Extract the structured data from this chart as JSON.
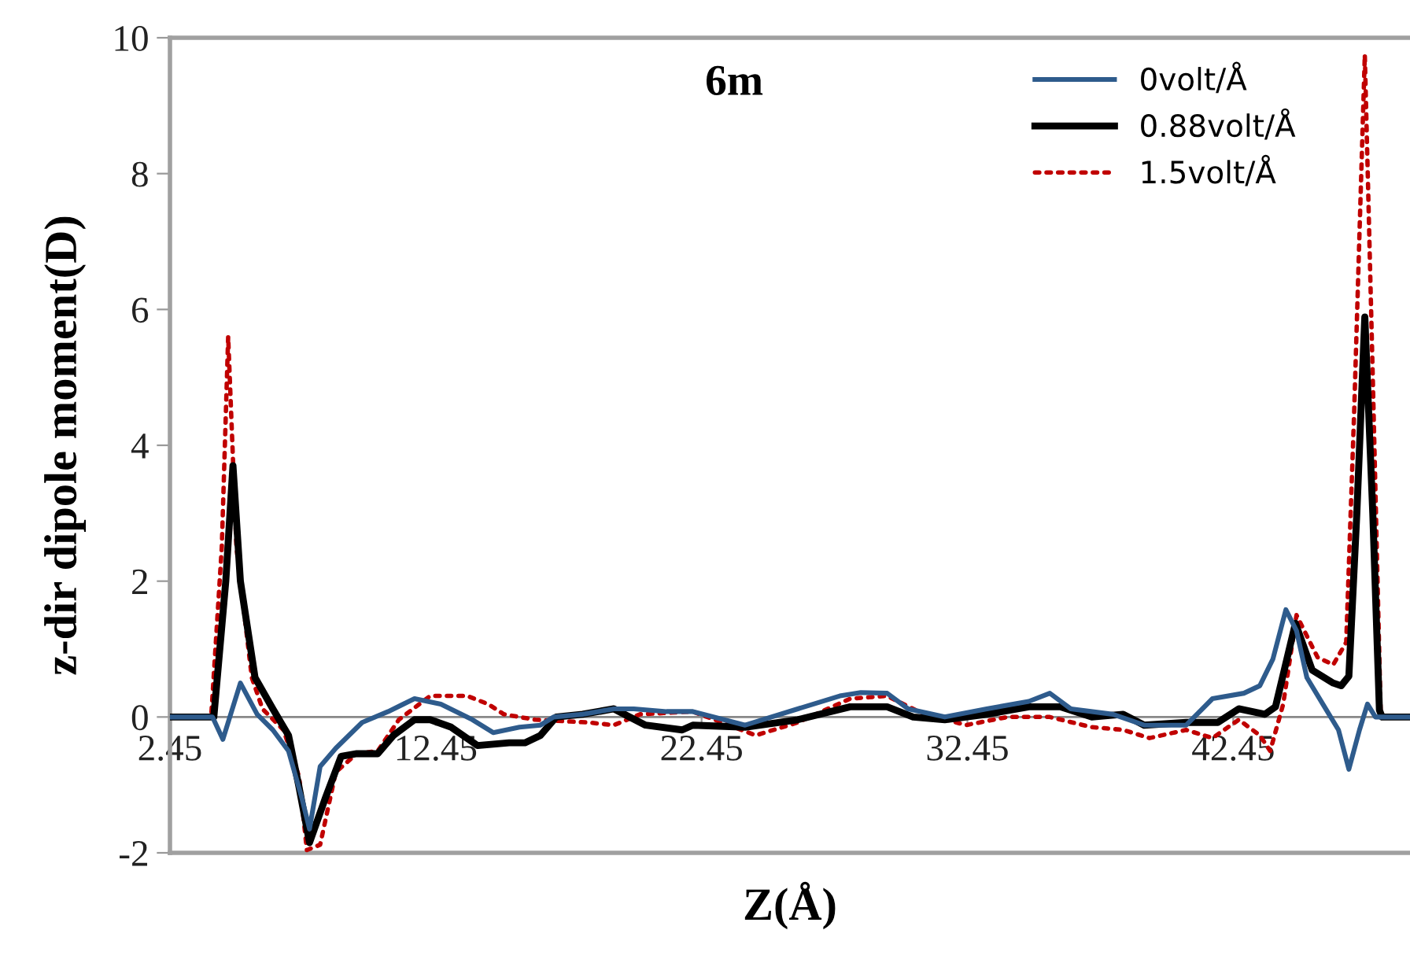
{
  "chart_data": {
    "type": "line",
    "title": "6m",
    "xlabel": "Z(Å)",
    "ylabel": "z-dir dipole moment(D)",
    "xlim": [
      2.45,
      49.1
    ],
    "xticks": [
      2.45,
      12.45,
      22.45,
      32.45,
      42.45
    ],
    "ylim": [
      -2,
      10
    ],
    "yticks": [
      -2,
      0,
      2,
      4,
      6,
      8,
      10
    ],
    "grid": false,
    "legend": "top right",
    "series": [
      {
        "name": "0volt/Å",
        "color": "#2e5b8c",
        "line_style": "solid",
        "x": [
          2.45,
          4.05,
          4.44,
          5.1,
          5.73,
          6.32,
          6.91,
          7.41,
          7.7,
          8.1,
          8.69,
          9.68,
          10.66,
          11.65,
          12.64,
          13.83,
          14.61,
          15.6,
          16.39,
          16.88,
          17.97,
          19.15,
          19.9,
          21.13,
          22.12,
          24.09,
          26.07,
          27.65,
          28.44,
          29.43,
          30.22,
          31.6,
          33.18,
          34.76,
          35.55,
          36.34,
          37.92,
          39.1,
          40.68,
          41.67,
          42.85,
          43.45,
          43.94,
          44.43,
          44.83,
          45.22,
          45.82,
          46.41,
          46.8,
          47.2,
          47.5,
          47.8,
          49.1
        ],
        "values": [
          0,
          0,
          -0.33,
          0.5,
          0.04,
          -0.19,
          -0.5,
          -1.19,
          -1.65,
          -0.73,
          -0.46,
          -0.08,
          0.08,
          0.27,
          0.19,
          -0.04,
          -0.23,
          -0.15,
          -0.12,
          0,
          0.04,
          0.12,
          0.12,
          0.08,
          0.08,
          -0.12,
          0.12,
          0.31,
          0.36,
          0.35,
          0.12,
          0,
          0.12,
          0.23,
          0.35,
          0.12,
          0.04,
          -0.12,
          -0.12,
          0.27,
          0.35,
          0.46,
          0.85,
          1.58,
          1.27,
          0.58,
          0.19,
          -0.19,
          -0.77,
          -0.19,
          0.19,
          0,
          0
        ]
      },
      {
        "name": "0.88volt/Å",
        "color": "#000000",
        "line_style": "solid",
        "x": [
          2.45,
          4.1,
          4.55,
          4.82,
          5.1,
          5.65,
          6.32,
          6.91,
          7.31,
          7.7,
          8.3,
          8.89,
          9.48,
          10.27,
          10.86,
          11.65,
          12.24,
          13.03,
          14.02,
          15.21,
          15.8,
          16.39,
          16.98,
          17.97,
          19.15,
          20.34,
          21.72,
          22.12,
          24.09,
          26.07,
          28.04,
          29.43,
          30.41,
          31.6,
          33.18,
          34.76,
          35.94,
          37.13,
          38.31,
          39.1,
          40.68,
          41.87,
          42.66,
          43.64,
          44.04,
          44.79,
          45.42,
          46.21,
          46.51,
          46.8,
          47.1,
          47.4,
          47.7,
          47.95,
          48.05,
          49.1
        ],
        "values": [
          0,
          0,
          2.0,
          3.7,
          2.0,
          0.58,
          0.12,
          -0.27,
          -1.04,
          -1.85,
          -1.19,
          -0.58,
          -0.54,
          -0.54,
          -0.27,
          -0.04,
          -0.04,
          -0.15,
          -0.42,
          -0.38,
          -0.38,
          -0.27,
          0,
          0.04,
          0.12,
          -0.12,
          -0.19,
          -0.12,
          -0.15,
          -0.04,
          0.15,
          0.15,
          0,
          -0.04,
          0.04,
          0.15,
          0.15,
          0,
          0.04,
          -0.12,
          -0.08,
          -0.08,
          0.12,
          0.04,
          0.15,
          1.38,
          0.69,
          0.5,
          0.46,
          0.6,
          3.0,
          5.89,
          3.0,
          0.1,
          0,
          0
        ]
      },
      {
        "name": "1.5volt/Å",
        "color": "#c00000",
        "line_style": "dotted",
        "x": [
          2.45,
          4.0,
          4.4,
          4.64,
          4.95,
          5.53,
          5.93,
          6.72,
          7.31,
          7.6,
          8.1,
          8.69,
          9.48,
          10.27,
          11.06,
          12.24,
          13.63,
          14.42,
          15.01,
          16.19,
          18.17,
          19.15,
          20.14,
          22.12,
          24.49,
          26.07,
          28.04,
          29.43,
          30.61,
          32.39,
          33.97,
          35.55,
          37.13,
          38.31,
          39.3,
          40.68,
          41.67,
          42.66,
          43.45,
          43.84,
          44.33,
          44.83,
          45.62,
          46.21,
          46.7,
          47.0,
          47.4,
          47.7,
          48.0,
          49.1
        ],
        "values": [
          0,
          0,
          2.5,
          5.6,
          2.5,
          0.58,
          0.12,
          -0.19,
          -0.88,
          -1.96,
          -1.88,
          -0.81,
          -0.54,
          -0.5,
          -0.04,
          0.31,
          0.31,
          0.19,
          0.04,
          -0.04,
          -0.08,
          -0.12,
          0.04,
          0.08,
          -0.27,
          -0.08,
          0.27,
          0.31,
          0.08,
          -0.12,
          0,
          0,
          -0.15,
          -0.19,
          -0.31,
          -0.19,
          -0.31,
          -0.04,
          -0.27,
          -0.5,
          0.19,
          1.5,
          0.88,
          0.77,
          1.1,
          4.5,
          9.75,
          5.0,
          0,
          0
        ]
      }
    ]
  }
}
